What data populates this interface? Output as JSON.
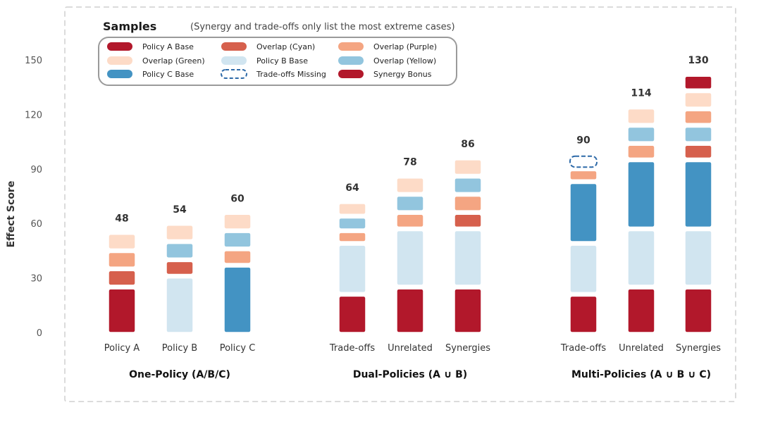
{
  "chart_data": {
    "type": "bar",
    "stacked": true,
    "title": "Samples",
    "subtitle": "(Synergy and trade-offs only list the most extreme cases)",
    "ylabel": "Effect Score",
    "ylim": [
      0,
      150
    ],
    "yticks": [
      0,
      30,
      60,
      90,
      120,
      150
    ],
    "legend": [
      {
        "key": "A",
        "label": "Policy A Base",
        "color": "#b2182b"
      },
      {
        "key": "G",
        "label": "Overlap (Green)",
        "color": "#fddbc7"
      },
      {
        "key": "C",
        "label": "Policy C Base",
        "color": "#4393c3"
      },
      {
        "key": "Cy",
        "label": "Overlap (Cyan)",
        "color": "#d6604d"
      },
      {
        "key": "B",
        "label": "Policy B Base",
        "color": "#d1e5f0"
      },
      {
        "key": "TM",
        "label": "Trade-offs Missing",
        "color": "#2e6aa8",
        "dashed": true
      },
      {
        "key": "P",
        "label": "Overlap (Purple)",
        "color": "#f4a582"
      },
      {
        "key": "Y",
        "label": "Overlap (Yellow)",
        "color": "#92c5de"
      },
      {
        "key": "S",
        "label": "Synergy Bonus",
        "color": "#b2182b"
      }
    ],
    "groups": [
      {
        "label": "One-Policy (A/B/C)",
        "bars": [
          {
            "label": "Policy A",
            "total": "48",
            "segments": [
              {
                "key": "A",
                "from": 0,
                "to": 24
              },
              {
                "key": "Cy",
                "from": 26,
                "to": 34
              },
              {
                "key": "P",
                "from": 36,
                "to": 44
              },
              {
                "key": "G",
                "from": 46,
                "to": 54
              }
            ]
          },
          {
            "label": "Policy B",
            "total": "54",
            "segments": [
              {
                "key": "B",
                "from": 0,
                "to": 30
              },
              {
                "key": "Cy",
                "from": 32,
                "to": 39
              },
              {
                "key": "Y",
                "from": 41,
                "to": 49
              },
              {
                "key": "G",
                "from": 51,
                "to": 59
              }
            ]
          },
          {
            "label": "Policy C",
            "total": "60",
            "segments": [
              {
                "key": "C",
                "from": 0,
                "to": 36
              },
              {
                "key": "P",
                "from": 38,
                "to": 45
              },
              {
                "key": "Y",
                "from": 47,
                "to": 55
              },
              {
                "key": "G",
                "from": 57,
                "to": 65
              }
            ]
          }
        ]
      },
      {
        "label": "Dual-Policies (A ∪ B)",
        "bars": [
          {
            "label": "Trade-offs",
            "total": "64",
            "segments": [
              {
                "key": "A",
                "from": 0,
                "to": 20
              },
              {
                "key": "B",
                "from": 22,
                "to": 48
              },
              {
                "key": "P",
                "from": 50,
                "to": 55
              },
              {
                "key": "Y",
                "from": 57,
                "to": 63
              },
              {
                "key": "G",
                "from": 65,
                "to": 71
              }
            ]
          },
          {
            "label": "Unrelated",
            "total": "78",
            "segments": [
              {
                "key": "A",
                "from": 0,
                "to": 24
              },
              {
                "key": "B",
                "from": 26,
                "to": 56
              },
              {
                "key": "P",
                "from": 58,
                "to": 65
              },
              {
                "key": "Y",
                "from": 67,
                "to": 75
              },
              {
                "key": "G",
                "from": 77,
                "to": 85
              }
            ]
          },
          {
            "label": "Synergies",
            "total": "86",
            "segments": [
              {
                "key": "A",
                "from": 0,
                "to": 24
              },
              {
                "key": "B",
                "from": 26,
                "to": 56
              },
              {
                "key": "Cy",
                "from": 58,
                "to": 65
              },
              {
                "key": "P",
                "from": 67,
                "to": 75
              },
              {
                "key": "Y",
                "from": 77,
                "to": 85
              },
              {
                "key": "G",
                "from": 87,
                "to": 95
              }
            ]
          }
        ]
      },
      {
        "label": "Multi-Policies (A ∪ B ∪ C)",
        "bars": [
          {
            "label": "Trade-offs",
            "total": "90",
            "segments": [
              {
                "key": "A",
                "from": 0,
                "to": 20
              },
              {
                "key": "B",
                "from": 22,
                "to": 48
              },
              {
                "key": "C",
                "from": 50,
                "to": 82
              },
              {
                "key": "P",
                "from": 84,
                "to": 89
              },
              {
                "key": "TM",
                "from": 91,
                "to": 97
              }
            ]
          },
          {
            "label": "Unrelated",
            "total": "114",
            "segments": [
              {
                "key": "A",
                "from": 0,
                "to": 24
              },
              {
                "key": "B",
                "from": 26,
                "to": 56
              },
              {
                "key": "C",
                "from": 58,
                "to": 94
              },
              {
                "key": "P",
                "from": 96,
                "to": 103
              },
              {
                "key": "Y",
                "from": 105,
                "to": 113
              },
              {
                "key": "G",
                "from": 115,
                "to": 123
              }
            ]
          },
          {
            "label": "Synergies",
            "total": "130",
            "segments": [
              {
                "key": "A",
                "from": 0,
                "to": 24
              },
              {
                "key": "B",
                "from": 26,
                "to": 56
              },
              {
                "key": "C",
                "from": 58,
                "to": 94
              },
              {
                "key": "Cy",
                "from": 96,
                "to": 103
              },
              {
                "key": "Y",
                "from": 105,
                "to": 113
              },
              {
                "key": "P",
                "from": 115,
                "to": 122
              },
              {
                "key": "G",
                "from": 124,
                "to": 132
              },
              {
                "key": "S",
                "from": 134,
                "to": 141
              }
            ]
          }
        ]
      }
    ]
  }
}
